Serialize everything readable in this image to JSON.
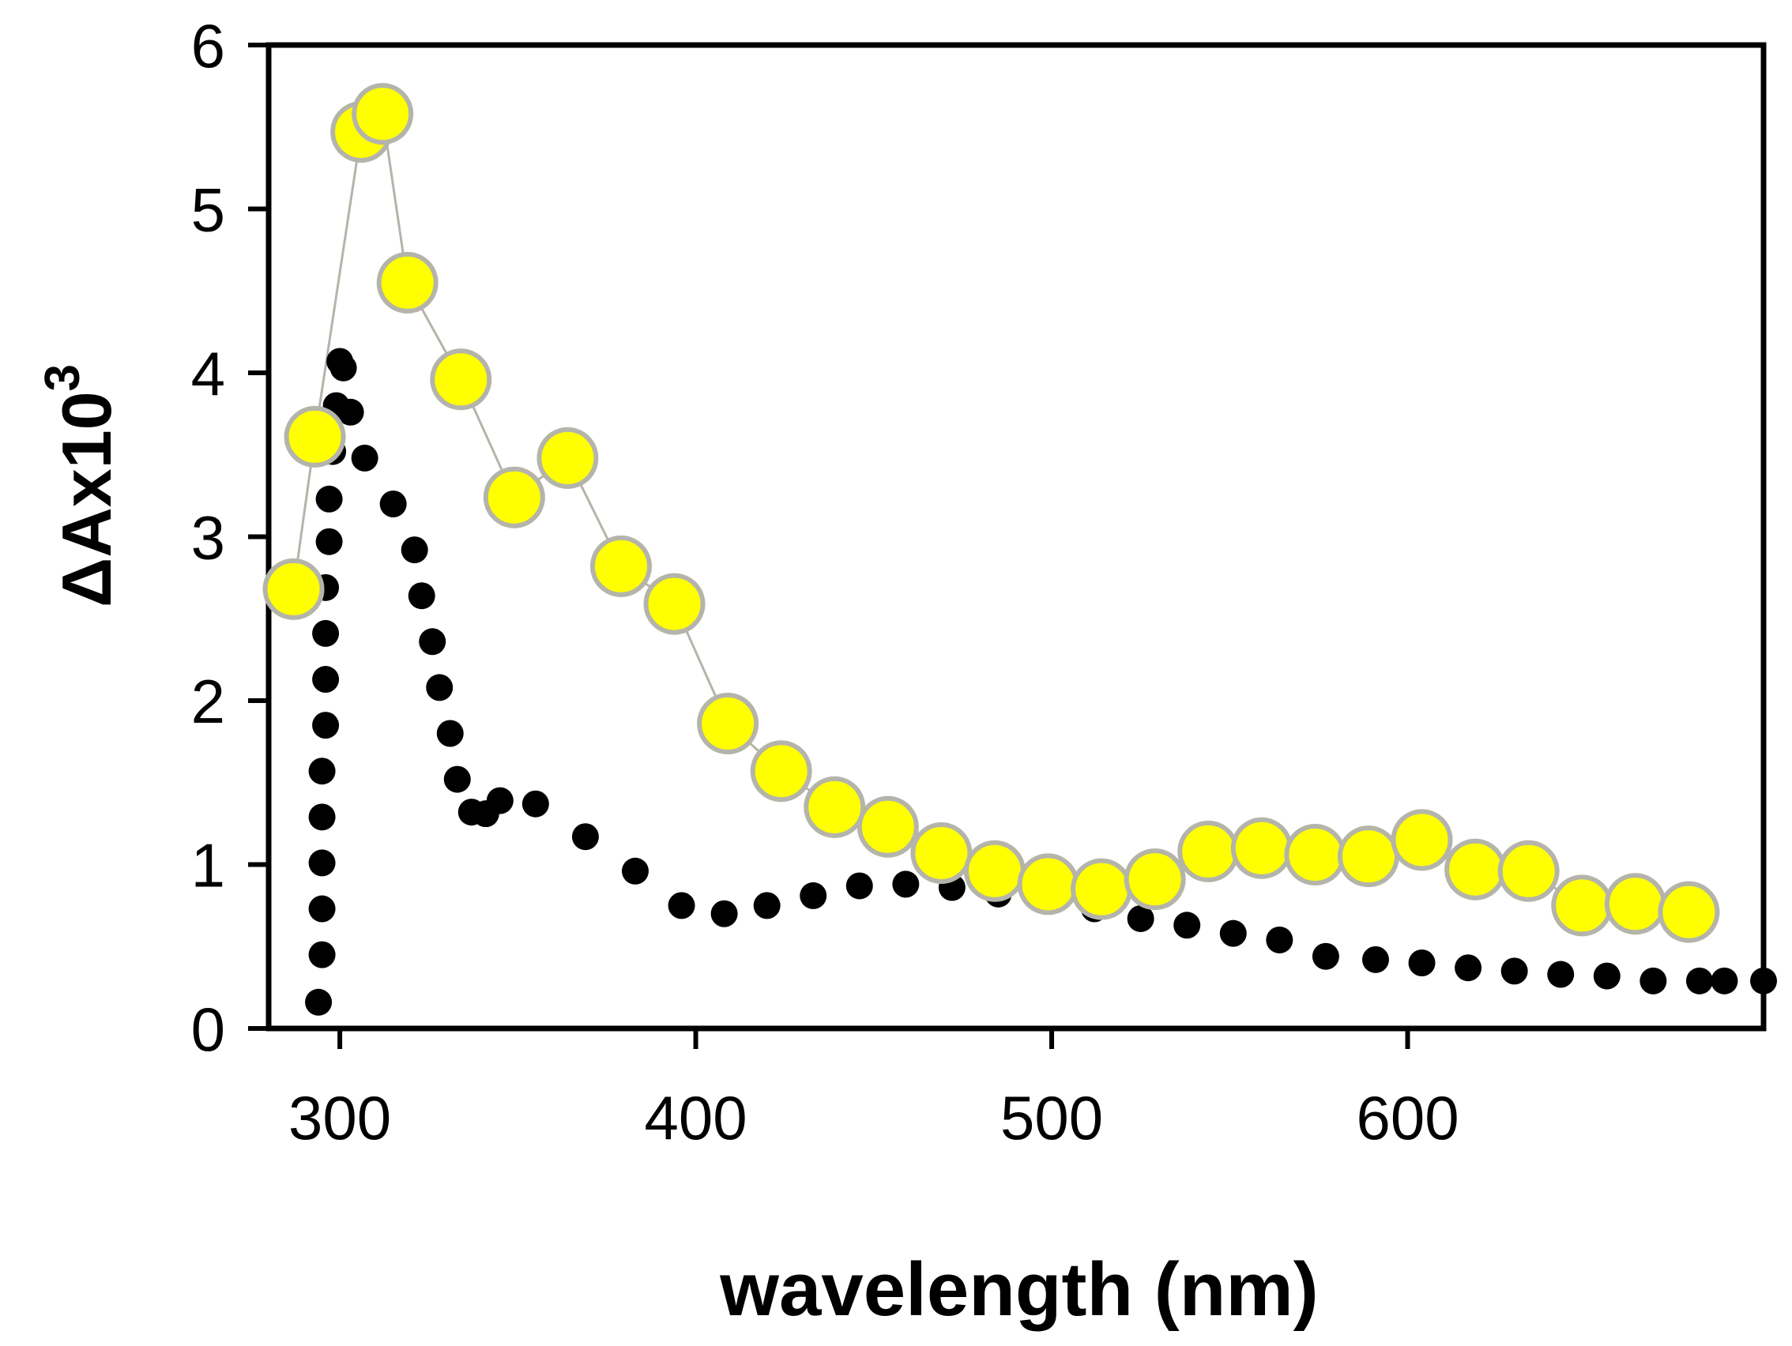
{
  "chart_data": {
    "type": "scatter",
    "title": "",
    "xlabel": "wavelength (nm)",
    "ylabel_main": "ΔAx10",
    "ylabel_superscript": "3",
    "xlim": [
      280,
      700
    ],
    "ylim": [
      0,
      6
    ],
    "x_ticks": [
      300,
      400,
      500,
      600
    ],
    "y_ticks": [
      0,
      1,
      2,
      3,
      4,
      5,
      6
    ],
    "grid": false,
    "legend": "none",
    "series": [
      {
        "name": "black dotted series",
        "marker": "small-filled-circle",
        "color": "#000000",
        "line": false,
        "x": [
          294,
          295,
          295,
          295,
          295,
          295,
          296,
          296,
          296,
          296,
          297,
          297,
          298,
          299,
          300,
          301,
          303,
          307,
          315,
          321,
          323,
          326,
          328,
          331,
          333,
          337,
          341,
          345,
          355,
          369,
          383,
          396,
          408,
          420,
          433,
          446,
          459,
          472,
          485,
          498,
          512,
          525,
          538,
          551,
          564,
          577,
          591,
          604,
          617,
          630,
          643,
          656,
          669,
          682,
          689,
          700
        ],
        "y": [
          0.16,
          0.45,
          0.73,
          1.01,
          1.29,
          1.57,
          1.85,
          2.13,
          2.41,
          2.69,
          2.97,
          3.23,
          3.52,
          3.8,
          4.07,
          4.03,
          3.76,
          3.48,
          3.2,
          2.92,
          2.64,
          2.36,
          2.08,
          1.8,
          1.52,
          1.32,
          1.31,
          1.39,
          1.37,
          1.17,
          0.96,
          0.75,
          0.7,
          0.75,
          0.81,
          0.87,
          0.88,
          0.86,
          0.82,
          0.78,
          0.73,
          0.67,
          0.63,
          0.58,
          0.54,
          0.44,
          0.42,
          0.4,
          0.37,
          0.35,
          0.33,
          0.32,
          0.29,
          0.29,
          0.29,
          0.29
        ]
      },
      {
        "name": "yellow circle series",
        "marker": "large-circle",
        "color": "#ffff00",
        "edge_color": "#b4b4aa",
        "line": true,
        "line_color": "#b4b4aa",
        "x": [
          287,
          293,
          306,
          312,
          319,
          334,
          349,
          364,
          379,
          394,
          409,
          424,
          439,
          454,
          469,
          484,
          499,
          514,
          529,
          544,
          559,
          574,
          589,
          604,
          619,
          634,
          649,
          664,
          679
        ],
        "y": [
          2.68,
          3.61,
          5.47,
          5.58,
          4.55,
          3.96,
          3.24,
          3.48,
          2.82,
          2.59,
          1.86,
          1.57,
          1.35,
          1.23,
          1.07,
          0.96,
          0.88,
          0.85,
          0.91,
          1.08,
          1.1,
          1.06,
          1.05,
          1.15,
          0.97,
          0.96,
          0.75,
          0.76,
          0.71
        ]
      }
    ]
  }
}
